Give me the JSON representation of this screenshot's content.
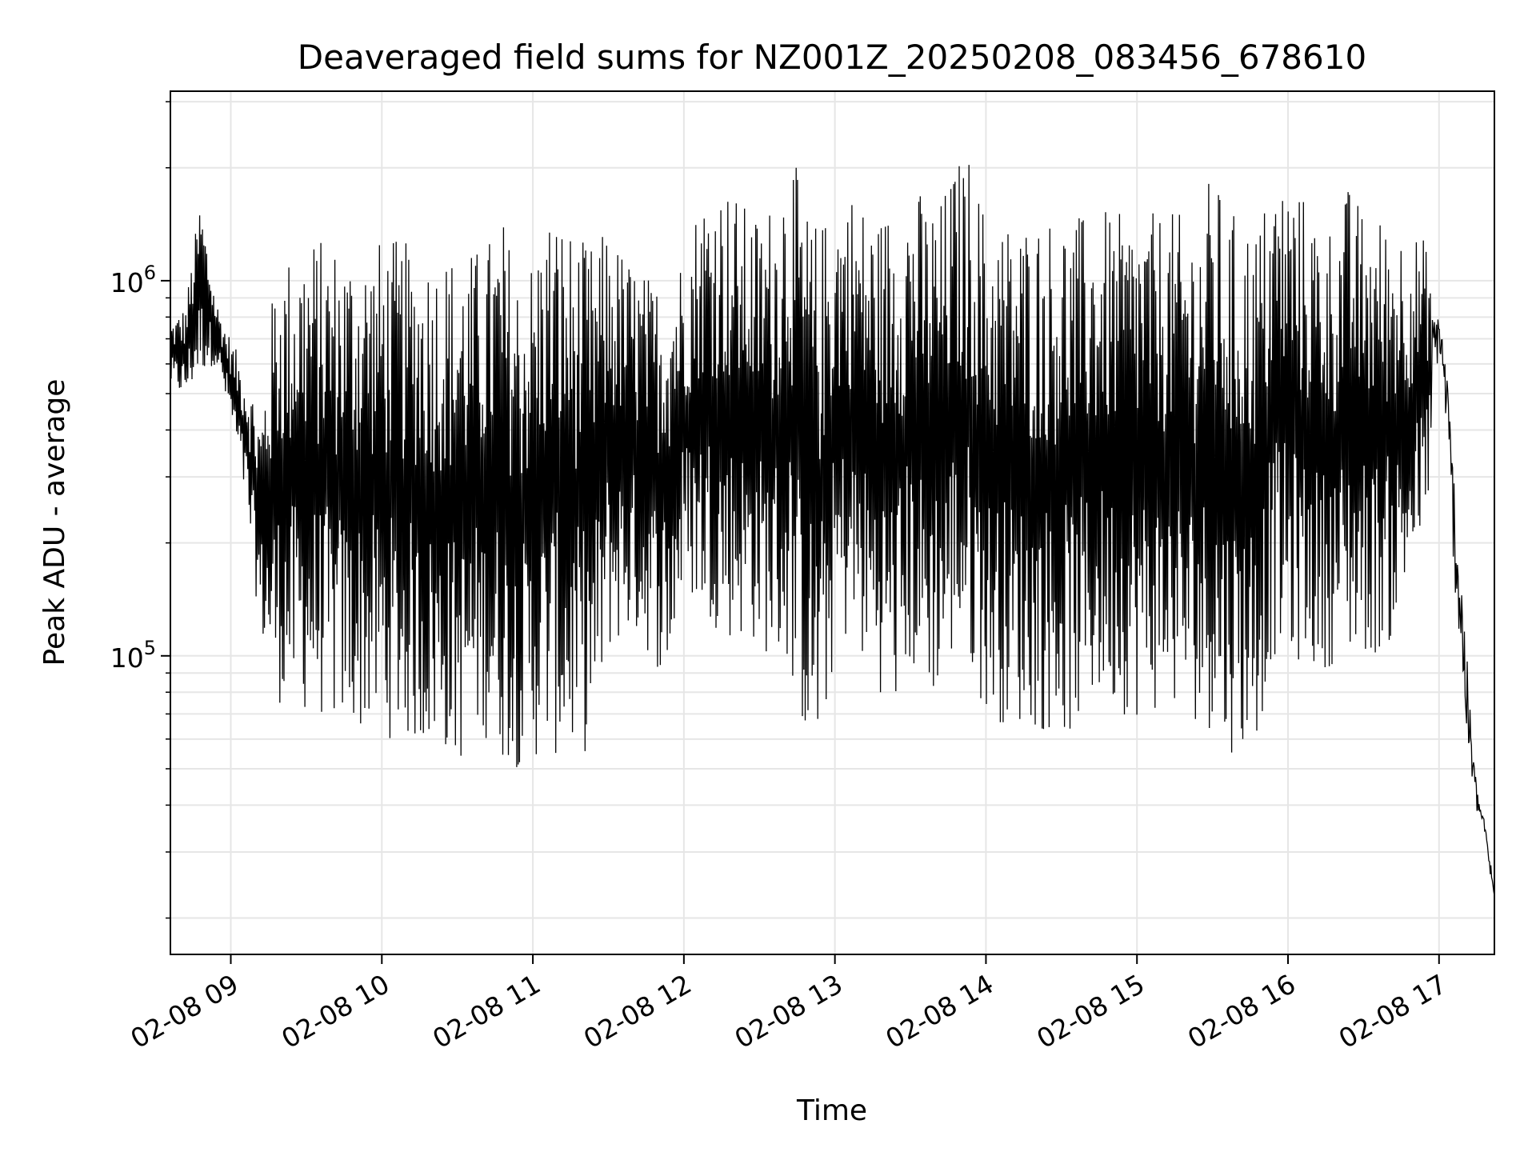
{
  "chart_data": {
    "type": "line",
    "title": "Deaveraged field sums for NZ001Z_20250208_083456_678610",
    "xlabel": "Time",
    "ylabel": "Peak ADU - average",
    "y_scale": "log",
    "xlim": [
      "2025-02-08 08:36",
      "2025-02-08 17:22"
    ],
    "ylim": [
      16000,
      3200000
    ],
    "grid": true,
    "legend": "none",
    "line_color": "#000000",
    "grid_color": "#e6e6e6",
    "x_ticks": [
      {
        "time": "2025-02-08 09:00",
        "label": "02-08 09"
      },
      {
        "time": "2025-02-08 10:00",
        "label": "02-08 10"
      },
      {
        "time": "2025-02-08 11:00",
        "label": "02-08 11"
      },
      {
        "time": "2025-02-08 12:00",
        "label": "02-08 12"
      },
      {
        "time": "2025-02-08 13:00",
        "label": "02-08 13"
      },
      {
        "time": "2025-02-08 14:00",
        "label": "02-08 14"
      },
      {
        "time": "2025-02-08 15:00",
        "label": "02-08 15"
      },
      {
        "time": "2025-02-08 16:00",
        "label": "02-08 16"
      },
      {
        "time": "2025-02-08 17:00",
        "label": "02-08 17"
      }
    ],
    "y_ticks": [
      {
        "value": 100000,
        "base": "10",
        "exp": "5"
      },
      {
        "value": 1000000,
        "base": "10",
        "exp": "6"
      }
    ],
    "series": [
      {
        "time": [
          "2025-02-08 08:36",
          "2025-02-08 08:42",
          "2025-02-08 08:48",
          "2025-02-08 08:54",
          "2025-02-08 09:00",
          "2025-02-08 09:06",
          "2025-02-08 09:12",
          "2025-02-08 09:18",
          "2025-02-08 09:24",
          "2025-02-08 09:30",
          "2025-02-08 09:36",
          "2025-02-08 09:42",
          "2025-02-08 09:48",
          "2025-02-08 09:54",
          "2025-02-08 10:00",
          "2025-02-08 10:06",
          "2025-02-08 10:12",
          "2025-02-08 10:18",
          "2025-02-08 10:24",
          "2025-02-08 10:30",
          "2025-02-08 10:36",
          "2025-02-08 10:42",
          "2025-02-08 10:48",
          "2025-02-08 10:54",
          "2025-02-08 11:00",
          "2025-02-08 11:06",
          "2025-02-08 11:12",
          "2025-02-08 11:18",
          "2025-02-08 11:24",
          "2025-02-08 11:30",
          "2025-02-08 11:36",
          "2025-02-08 11:42",
          "2025-02-08 11:48",
          "2025-02-08 11:54",
          "2025-02-08 12:00",
          "2025-02-08 12:06",
          "2025-02-08 12:12",
          "2025-02-08 12:18",
          "2025-02-08 12:24",
          "2025-02-08 12:30",
          "2025-02-08 12:36",
          "2025-02-08 12:42",
          "2025-02-08 12:48",
          "2025-02-08 12:54",
          "2025-02-08 13:00",
          "2025-02-08 13:06",
          "2025-02-08 13:12",
          "2025-02-08 13:18",
          "2025-02-08 13:24",
          "2025-02-08 13:30",
          "2025-02-08 13:36",
          "2025-02-08 13:42",
          "2025-02-08 13:48",
          "2025-02-08 13:54",
          "2025-02-08 14:00",
          "2025-02-08 14:06",
          "2025-02-08 14:12",
          "2025-02-08 14:18",
          "2025-02-08 14:24",
          "2025-02-08 14:30",
          "2025-02-08 14:36",
          "2025-02-08 14:42",
          "2025-02-08 14:48",
          "2025-02-08 14:54",
          "2025-02-08 15:00",
          "2025-02-08 15:06",
          "2025-02-08 15:12",
          "2025-02-08 15:18",
          "2025-02-08 15:24",
          "2025-02-08 15:30",
          "2025-02-08 15:36",
          "2025-02-08 15:42",
          "2025-02-08 15:48",
          "2025-02-08 15:54",
          "2025-02-08 16:00",
          "2025-02-08 16:06",
          "2025-02-08 16:12",
          "2025-02-08 16:18",
          "2025-02-08 16:24",
          "2025-02-08 16:30",
          "2025-02-08 16:36",
          "2025-02-08 16:42",
          "2025-02-08 16:48",
          "2025-02-08 16:54",
          "2025-02-08 17:00",
          "2025-02-08 17:03",
          "2025-02-08 17:06",
          "2025-02-08 17:09",
          "2025-02-08 17:12",
          "2025-02-08 17:15",
          "2025-02-08 17:18",
          "2025-02-08 17:22"
        ],
        "low": [
          520000,
          480000,
          560000,
          600000,
          420000,
          250000,
          110000,
          75000,
          72000,
          70000,
          68000,
          64000,
          63000,
          62000,
          60000,
          60000,
          58000,
          55000,
          56000,
          50000,
          58000,
          60000,
          52000,
          50000,
          52000,
          55000,
          52000,
          53000,
          57000,
          100000,
          110000,
          110000,
          95000,
          85000,
          150000,
          130000,
          120000,
          110000,
          110000,
          105000,
          95000,
          90000,
          60000,
          50000,
          100000,
          110000,
          90000,
          80000,
          70000,
          90000,
          75000,
          80000,
          100000,
          90000,
          70000,
          66000,
          65000,
          64000,
          62000,
          60000,
          62000,
          72000,
          75000,
          70000,
          68000,
          70000,
          72000,
          68000,
          66000,
          63000,
          55000,
          55000,
          60000,
          100000,
          95000,
          95000,
          90000,
          95000,
          95000,
          100000,
          100000,
          110000,
          150000,
          200000,
          500000,
          300000,
          100000,
          50000,
          35000,
          34000,
          33000,
          18000
        ],
        "high": [
          780000,
          860000,
          1700000,
          900000,
          700000,
          580000,
          450000,
          1150000,
          1200000,
          1350000,
          1300000,
          1280000,
          1250000,
          1260000,
          1300000,
          1300000,
          1250000,
          1230000,
          1220000,
          1200000,
          1210000,
          1300000,
          1500000,
          1100000,
          1200000,
          1600000,
          1500000,
          1300000,
          1250000,
          1400000,
          1200000,
          1100000,
          1000000,
          1100000,
          1200000,
          1700000,
          1900000,
          1800000,
          1600000,
          1500000,
          1700000,
          2400000,
          1600000,
          1400000,
          1700000,
          1800000,
          1600000,
          1500000,
          1700000,
          1850000,
          1700000,
          1650000,
          2100000,
          2200000,
          1500000,
          1500000,
          1450000,
          1500000,
          1500000,
          1550000,
          1500000,
          1500000,
          1550000,
          1500000,
          1550000,
          1520000,
          1550000,
          1500000,
          1480000,
          2000000,
          1550000,
          1500000,
          1450000,
          1900000,
          1950000,
          1700000,
          1500000,
          1450000,
          1800000,
          1550000,
          1500000,
          1450000,
          1400000,
          1300000,
          1100000,
          800000,
          500000,
          300000,
          110000,
          50000,
          38000,
          28000
        ]
      }
    ]
  }
}
